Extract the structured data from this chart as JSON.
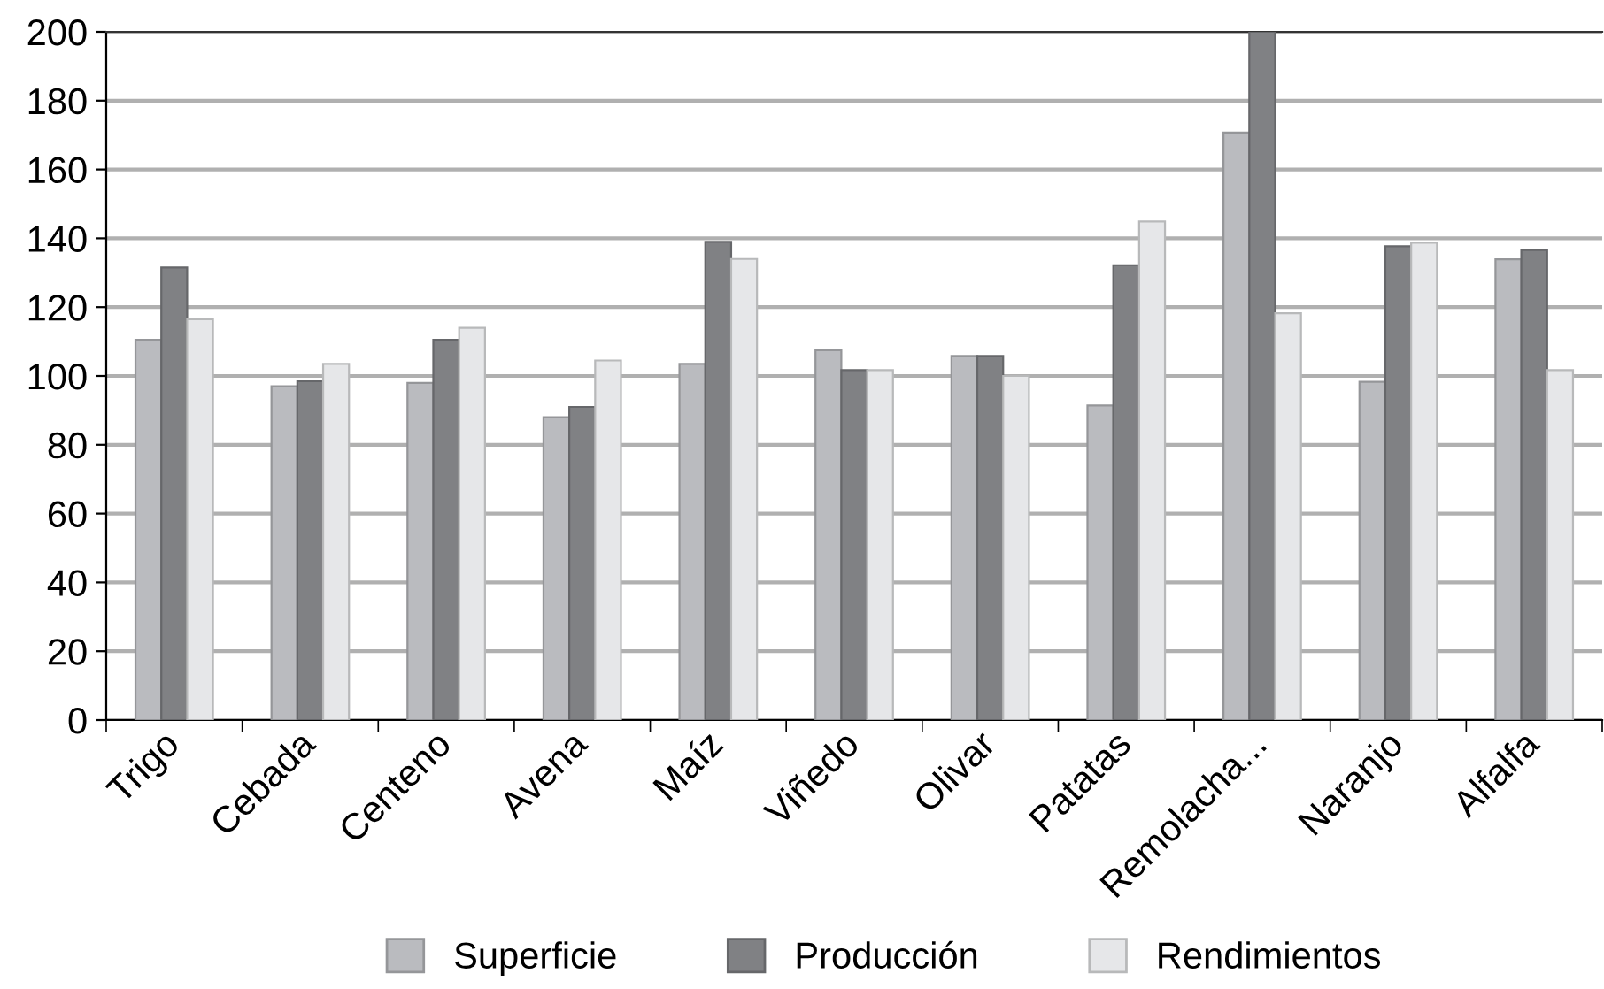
{
  "chart_data": {
    "type": "bar",
    "categories": [
      "Trigo",
      "Cebada",
      "Centeno",
      "Avena",
      "Maíz",
      "Viñedo",
      "Olivar",
      "Patatas",
      "Remolacha...",
      "Naranjo",
      "Alfalfa"
    ],
    "series": [
      {
        "name": "Superficie",
        "color": "#babbbf",
        "values": [
          110.5,
          97,
          98,
          88,
          103.5,
          107.5,
          105.8,
          91.4,
          170.7,
          98.3,
          133.9
        ]
      },
      {
        "name": "Producción",
        "color": "#808184",
        "values": [
          131.5,
          98.5,
          110.5,
          91,
          139,
          101.7,
          105.8,
          132.2,
          200,
          137.7,
          136.6
        ]
      },
      {
        "name": "Rendimientos",
        "color": "#e6e7e9",
        "values": [
          116.5,
          103.5,
          114,
          104.5,
          134,
          101.7,
          100,
          144.9,
          118.2,
          138.7,
          101.7
        ]
      }
    ],
    "ylim": [
      0,
      200
    ],
    "yticks": [
      0,
      20,
      40,
      60,
      80,
      100,
      120,
      140,
      160,
      180,
      200
    ],
    "grid": "y",
    "legend": "bottom"
  }
}
